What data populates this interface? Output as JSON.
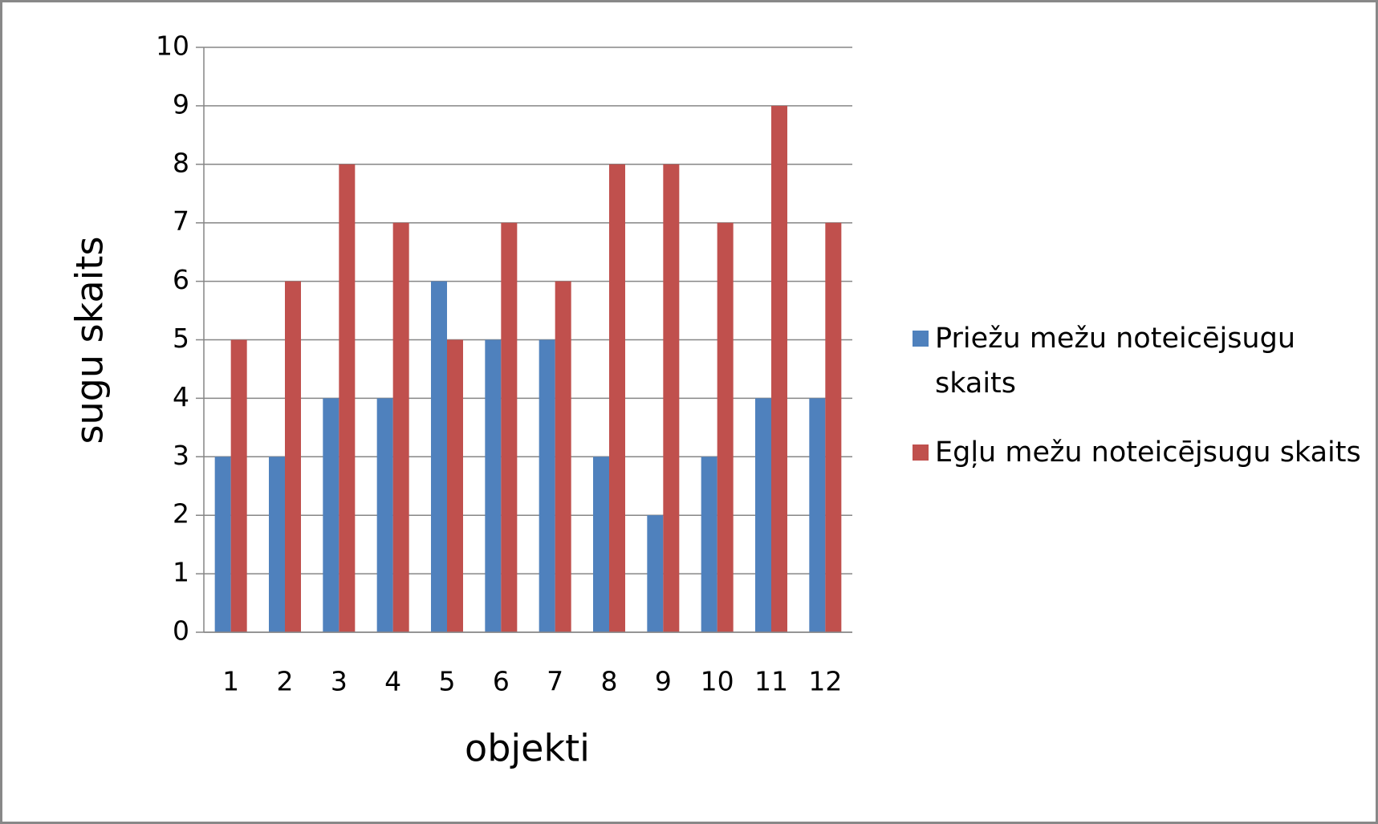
{
  "chart_data": {
    "type": "bar",
    "xlabel": "objekti",
    "ylabel": "sugu skaits",
    "categories": [
      "1",
      "2",
      "3",
      "4",
      "5",
      "6",
      "7",
      "8",
      "9",
      "10",
      "11",
      "12"
    ],
    "series": [
      {
        "name": "Priežu mežu noteicējsugu skaits",
        "color": "#4f81bd",
        "values": [
          3,
          3,
          4,
          4,
          6,
          5,
          5,
          3,
          2,
          3,
          4,
          4
        ]
      },
      {
        "name": "Egļu mežu noteicējsugu skaits",
        "color": "#c0504d",
        "values": [
          5,
          6,
          8,
          7,
          5,
          7,
          6,
          8,
          8,
          7,
          9,
          7
        ]
      }
    ],
    "ylim": [
      0,
      10
    ],
    "yticks": [
      0,
      1,
      2,
      3,
      4,
      5,
      6,
      7,
      8,
      9,
      10
    ],
    "grid": true,
    "legend": "right"
  }
}
